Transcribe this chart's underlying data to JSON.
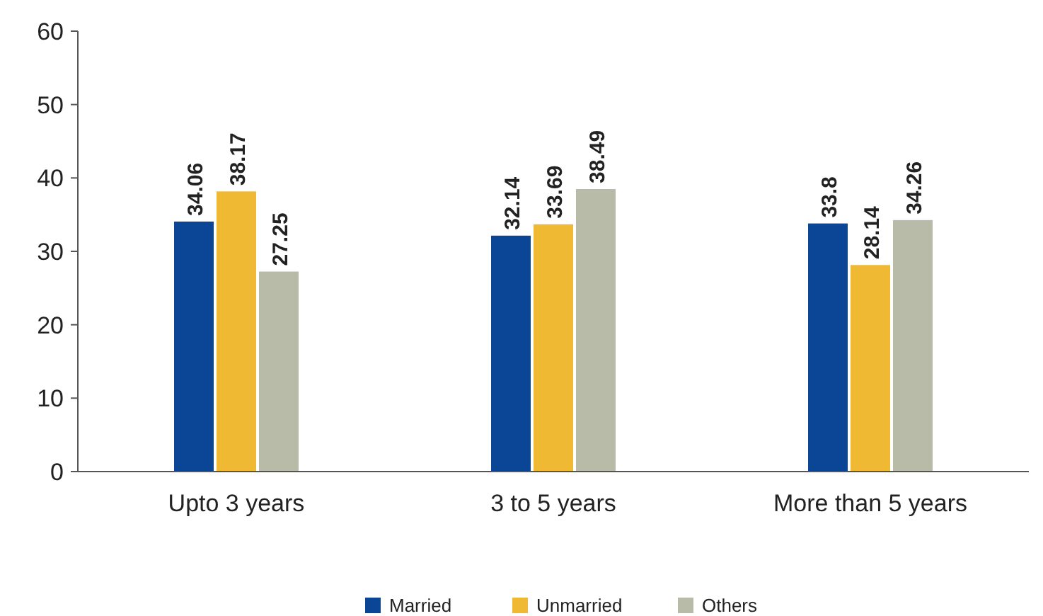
{
  "chart_data": {
    "type": "bar",
    "categories": [
      "Upto 3 years",
      "3 to 5 years",
      "More than 5 years"
    ],
    "series": [
      {
        "name": "Married",
        "color": "#0b4596",
        "values": [
          34.06,
          32.14,
          33.8
        ]
      },
      {
        "name": "Unmarried",
        "color": "#f0b934",
        "values": [
          38.17,
          33.69,
          28.14
        ]
      },
      {
        "name": "Others",
        "color": "#b8bba8",
        "values": [
          27.25,
          38.49,
          34.26
        ]
      }
    ],
    "ylim": [
      0,
      60
    ],
    "yticks": [
      0,
      10,
      20,
      30,
      40,
      50,
      60
    ],
    "data_labels": true,
    "legend": "bottom",
    "grid": false
  }
}
